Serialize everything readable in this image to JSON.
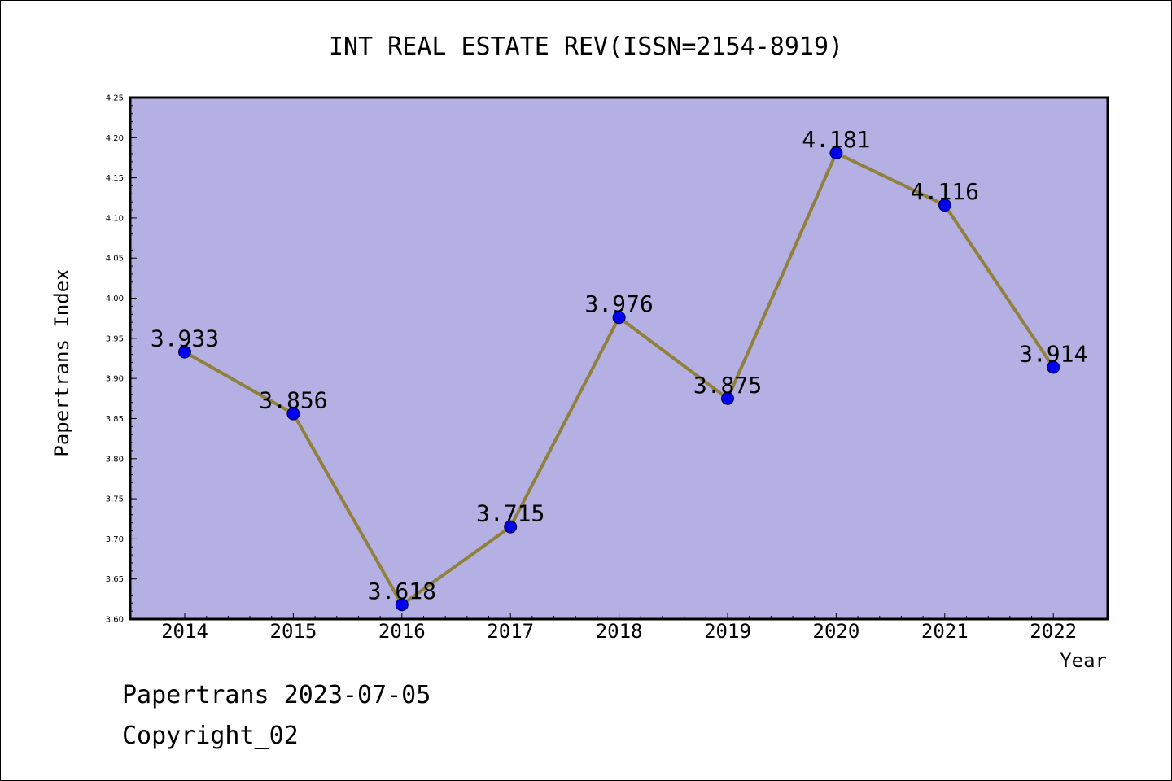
{
  "chart_data": {
    "type": "line",
    "title": "INT REAL ESTATE REV(ISSN=2154-8919)",
    "xlabel": "Year",
    "ylabel": "Papertrans Index",
    "categories": [
      "2014",
      "2015",
      "2016",
      "2017",
      "2018",
      "2019",
      "2020",
      "2021",
      "2022"
    ],
    "values": [
      3.933,
      3.856,
      3.618,
      3.715,
      3.976,
      3.875,
      4.181,
      4.116,
      3.914
    ],
    "data_labels": [
      "3.933",
      "3.856",
      "3.618",
      "3.715",
      "3.976",
      "3.875",
      "4.181",
      "4.116",
      "3.914"
    ],
    "ylim": [
      3.6,
      4.25
    ],
    "yticks": [
      "3.60",
      "3.65",
      "3.70",
      "3.75",
      "3.80",
      "3.85",
      "3.90",
      "3.95",
      "4.00",
      "4.05",
      "4.10",
      "4.15",
      "4.20",
      "4.25"
    ],
    "grid": false,
    "legend": "none",
    "colors": {
      "plot_background": "#b5b0e3",
      "line": "#8f803c",
      "marker": "#0000ee"
    }
  },
  "footer": {
    "line1": "Papertrans 2023-07-05",
    "line2": "Copyright_02"
  }
}
